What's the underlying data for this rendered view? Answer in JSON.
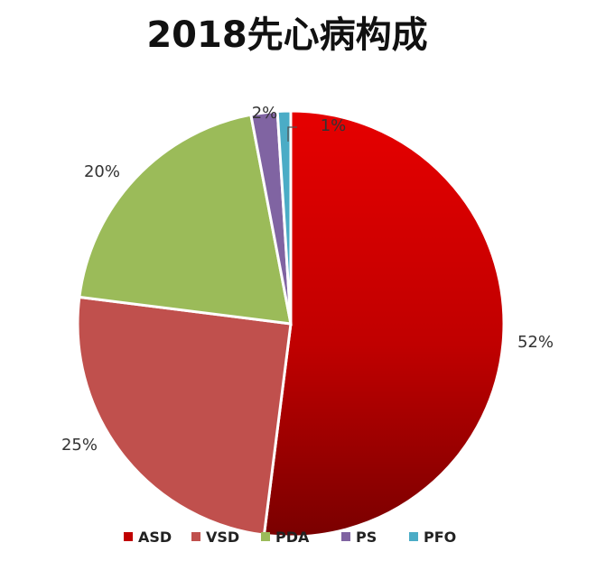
{
  "chart_data": {
    "type": "pie",
    "title": "2018先心病构成",
    "categories": [
      "ASD",
      "VSD",
      "PDA",
      "PS",
      "PFO"
    ],
    "values": [
      52,
      25,
      20,
      2,
      1
    ],
    "labels": [
      "52%",
      "25%",
      "20%",
      "2%",
      "1%"
    ],
    "colors": [
      "#c00000",
      "#c0504d",
      "#9bbb59",
      "#8064a2",
      "#4bacc6"
    ],
    "legend_position": "bottom"
  }
}
